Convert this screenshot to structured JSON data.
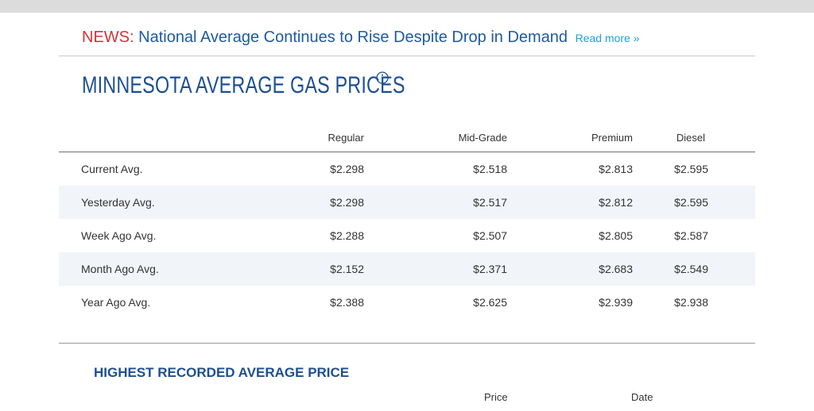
{
  "news": {
    "label": "NEWS:",
    "headline": "National Average Continues to Rise Despite Drop in Demand",
    "link": "Read more »"
  },
  "page": {
    "title": "MINNESOTA AVERAGE GAS PRICES",
    "info_icon": "info-circle-icon"
  },
  "prices": {
    "headers": [
      "Regular",
      "Mid-Grade",
      "Premium",
      "Diesel"
    ],
    "rows": [
      {
        "label": "Current Avg.",
        "regular": "$2.298",
        "mid": "$2.518",
        "premium": "$2.813",
        "diesel": "$2.595"
      },
      {
        "label": "Yesterday Avg.",
        "regular": "$2.298",
        "mid": "$2.517",
        "premium": "$2.812",
        "diesel": "$2.595"
      },
      {
        "label": "Week Ago Avg.",
        "regular": "$2.288",
        "mid": "$2.507",
        "premium": "$2.805",
        "diesel": "$2.587"
      },
      {
        "label": "Month Ago Avg.",
        "regular": "$2.152",
        "mid": "$2.371",
        "premium": "$2.683",
        "diesel": "$2.549"
      },
      {
        "label": "Year Ago Avg.",
        "regular": "$2.388",
        "mid": "$2.625",
        "premium": "$2.939",
        "diesel": "$2.938"
      }
    ]
  },
  "highest": {
    "title": "HIGHEST RECORDED AVERAGE PRICE",
    "headers": [
      "Price",
      "Date"
    ]
  },
  "colors": {
    "news_label": "#d0343a",
    "headline": "#1f5aa0",
    "link": "#1aa3dc",
    "title": "#1d4f91",
    "row_stripe": "#f1f5f9"
  }
}
